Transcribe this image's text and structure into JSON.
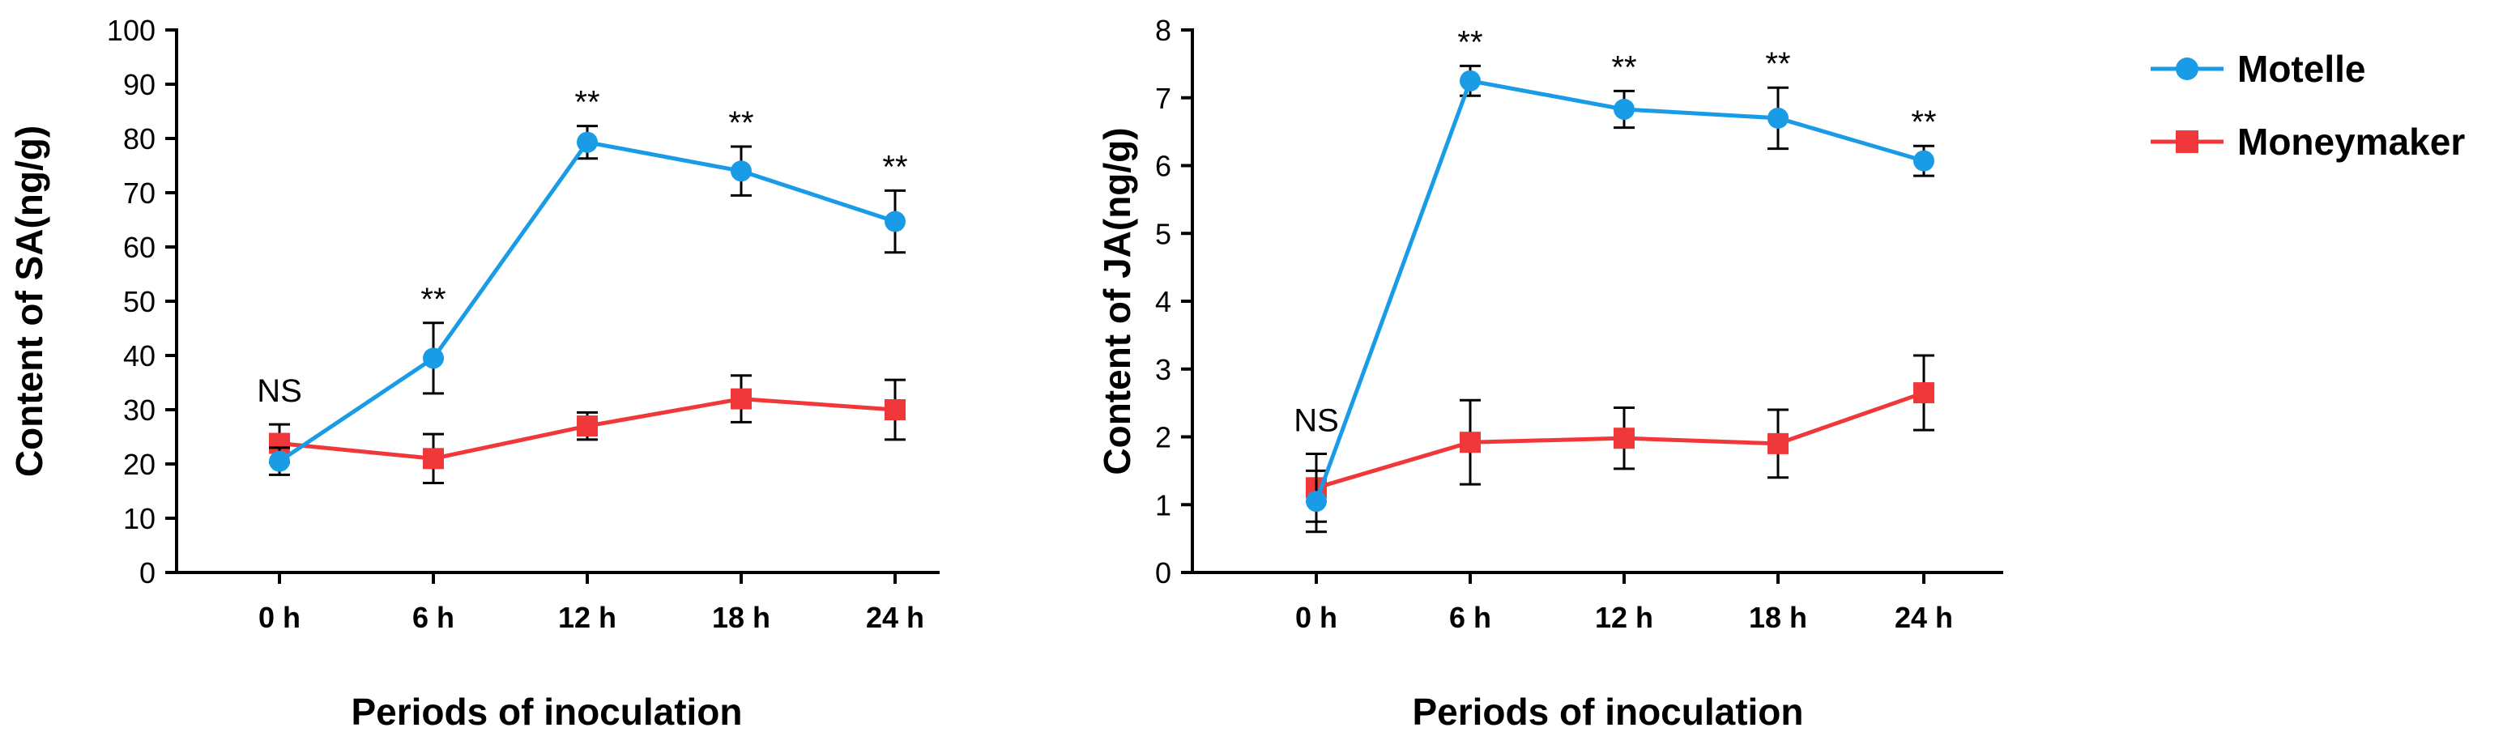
{
  "colors": {
    "motelle": "#1a9be6",
    "moneymaker": "#f0383a",
    "axis": "#000000"
  },
  "legend": {
    "placement": "top-right",
    "items": [
      {
        "label": "Motelle",
        "marker": "circle",
        "color": "#1a9be6"
      },
      {
        "label": "Moneymaker",
        "marker": "square",
        "color": "#f0383a"
      }
    ]
  },
  "chart_data": [
    {
      "type": "line",
      "xlabel": "Periods of inoculation",
      "ylabel": "Content of SA(ng/g)",
      "categories": [
        "0 h",
        "6 h",
        "12 h",
        "18 h",
        "24 h"
      ],
      "ylim": [
        0,
        100
      ],
      "yticks": [
        0,
        10,
        20,
        30,
        40,
        50,
        60,
        70,
        80,
        90,
        100
      ],
      "grid": false,
      "series": [
        {
          "name": "Motelle",
          "values": [
            20.5,
            39.5,
            79.3,
            74,
            64.7
          ],
          "errors": [
            2.5,
            6.5,
            3,
            4.5,
            5.7
          ]
        },
        {
          "name": "Moneymaker",
          "values": [
            23.8,
            21,
            27,
            32,
            30
          ],
          "errors": [
            3.5,
            4.5,
            2.5,
            4.3,
            5.5
          ]
        }
      ],
      "annotations": [
        "NS",
        "**",
        "**",
        "**",
        "**"
      ]
    },
    {
      "type": "line",
      "xlabel": "Periods of inoculation",
      "ylabel": "Content of JA(ng/g)",
      "categories": [
        "0 h",
        "6 h",
        "12 h",
        "18 h",
        "24 h"
      ],
      "ylim": [
        0,
        8
      ],
      "yticks": [
        0,
        1,
        2,
        3,
        4,
        5,
        6,
        7,
        8
      ],
      "grid": false,
      "series": [
        {
          "name": "Motelle",
          "values": [
            1.05,
            7.25,
            6.83,
            6.7,
            6.07
          ],
          "errors": [
            0.45,
            0.22,
            0.27,
            0.45,
            0.22
          ]
        },
        {
          "name": "Moneymaker",
          "values": [
            1.25,
            1.92,
            1.98,
            1.9,
            2.65
          ],
          "errors": [
            0.5,
            0.62,
            0.45,
            0.5,
            0.55
          ]
        }
      ],
      "annotations": [
        "NS",
        "**",
        "**",
        "**",
        "**"
      ]
    }
  ]
}
